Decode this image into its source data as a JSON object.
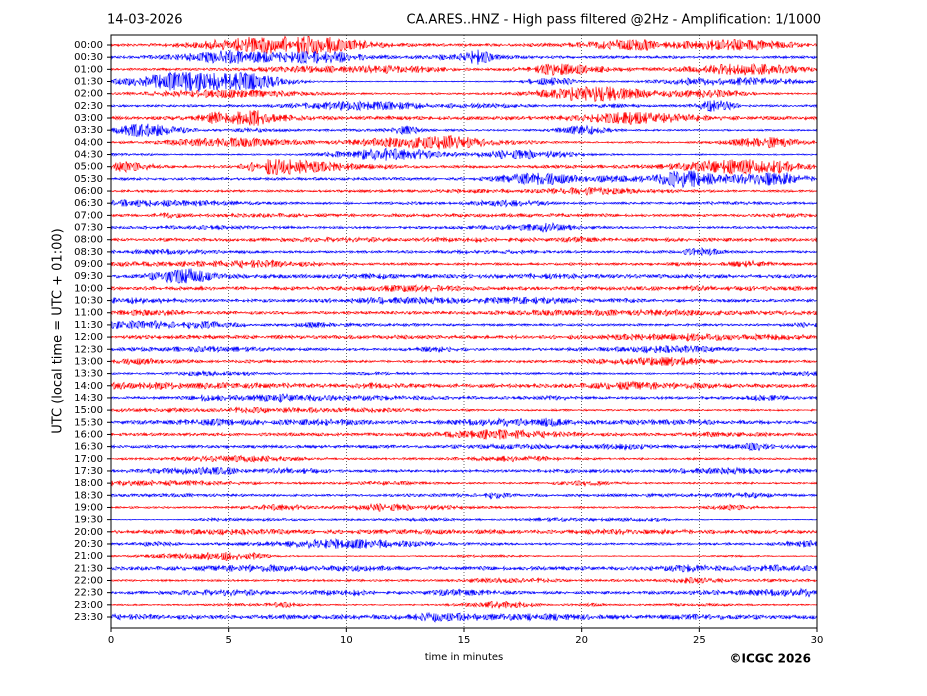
{
  "chart_data": {
    "type": "helicorder",
    "date": "14-03-2026",
    "title": "CA.ARES..HNZ - High pass filtered @2Hz - Amplification: 1/1000",
    "ylabel": "UTC (local time = UTC + 01:00)",
    "xlabel": "time in minutes",
    "credit": "©ICGC 2026",
    "categories": [
      "00:00",
      "00:30",
      "01:00",
      "01:30",
      "02:00",
      "02:30",
      "03:00",
      "03:30",
      "04:00",
      "04:30",
      "05:00",
      "05:30",
      "06:00",
      "06:30",
      "07:00",
      "07:30",
      "08:00",
      "08:30",
      "09:00",
      "09:30",
      "10:00",
      "10:30",
      "11:00",
      "11:30",
      "12:00",
      "12:30",
      "13:00",
      "13:30",
      "14:00",
      "14:30",
      "15:00",
      "15:30",
      "16:00",
      "16:30",
      "17:00",
      "17:30",
      "18:00",
      "18:30",
      "19:00",
      "19:30",
      "20:00",
      "20:30",
      "21:00",
      "21:30",
      "22:00",
      "22:30",
      "23:00",
      "23:30"
    ],
    "colors": [
      "#ff0000",
      "#0000ff"
    ],
    "xlim": [
      0,
      30
    ],
    "xticks": [
      0,
      5,
      10,
      15,
      20,
      25,
      30
    ],
    "grid": true
  }
}
